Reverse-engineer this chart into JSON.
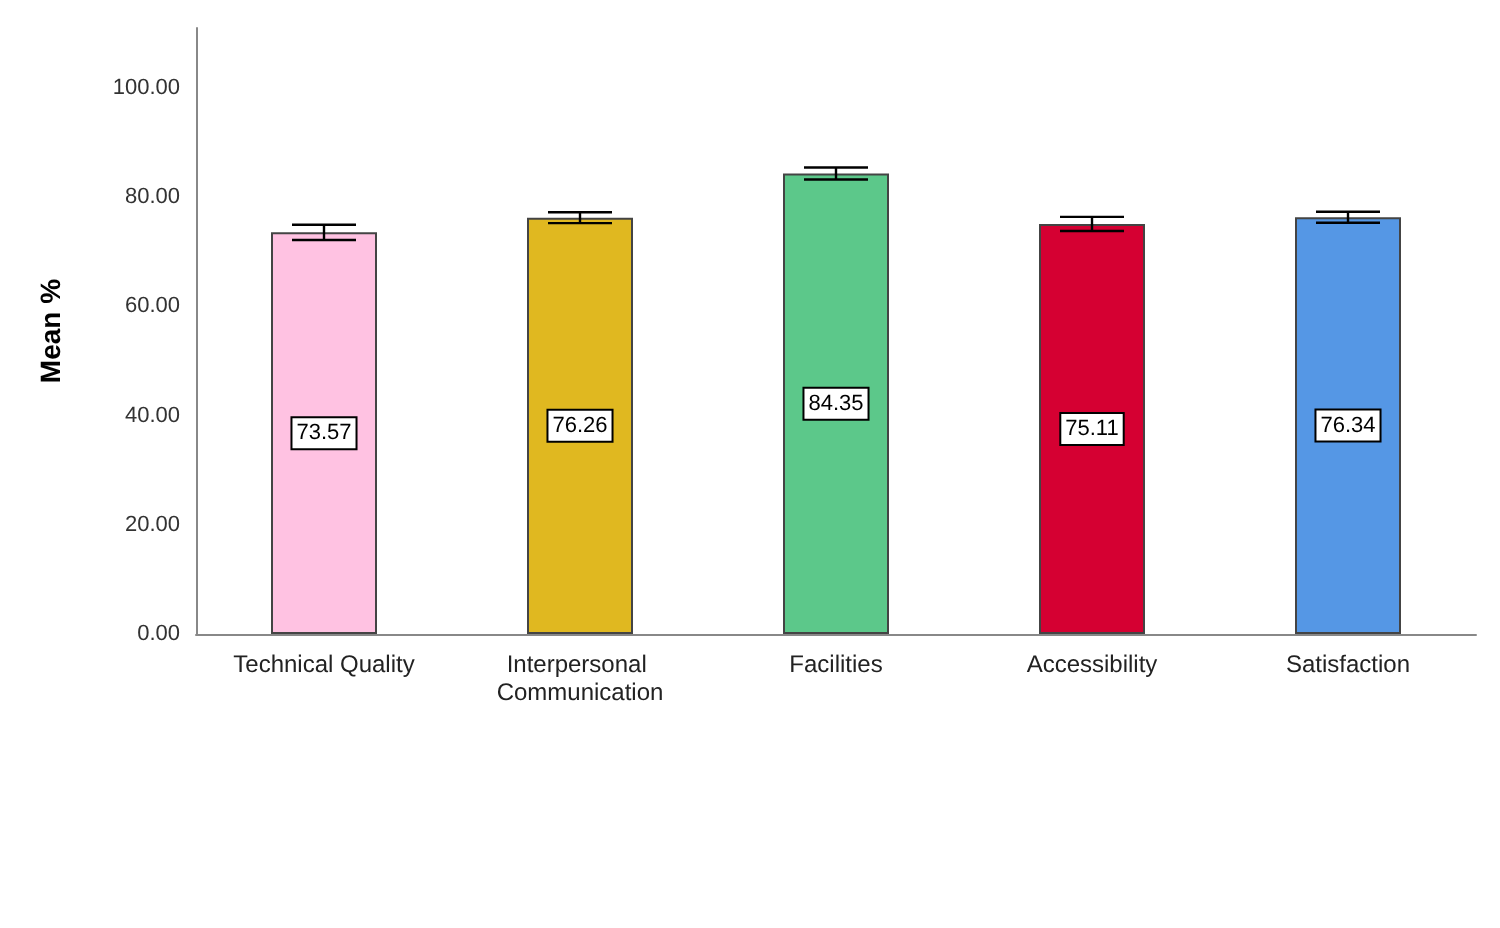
{
  "chart_data": {
    "type": "bar",
    "ylabel": "Mean %",
    "categories": [
      "Technical Quality",
      "Interpersonal Communication",
      "Facilities",
      "Accessibility",
      "Satisfaction"
    ],
    "values": [
      73.57,
      76.26,
      84.35,
      75.11,
      76.34
    ],
    "colors": [
      "#ffc2e2",
      "#e0b820",
      "#5cc88a",
      "#d50032",
      "#5597e5"
    ],
    "errors": [
      1.4,
      1.0,
      1.1,
      1.3,
      1.0
    ],
    "ylim": [
      0,
      111
    ],
    "yticks": [
      {
        "value": 0,
        "label": "0.00"
      },
      {
        "value": 20,
        "label": "20.00"
      },
      {
        "value": 40,
        "label": "40.00"
      },
      {
        "value": 60,
        "label": "60.00"
      },
      {
        "value": 80,
        "label": "80.00"
      },
      {
        "value": 100,
        "label": "100.00"
      }
    ],
    "data_labels": true
  }
}
